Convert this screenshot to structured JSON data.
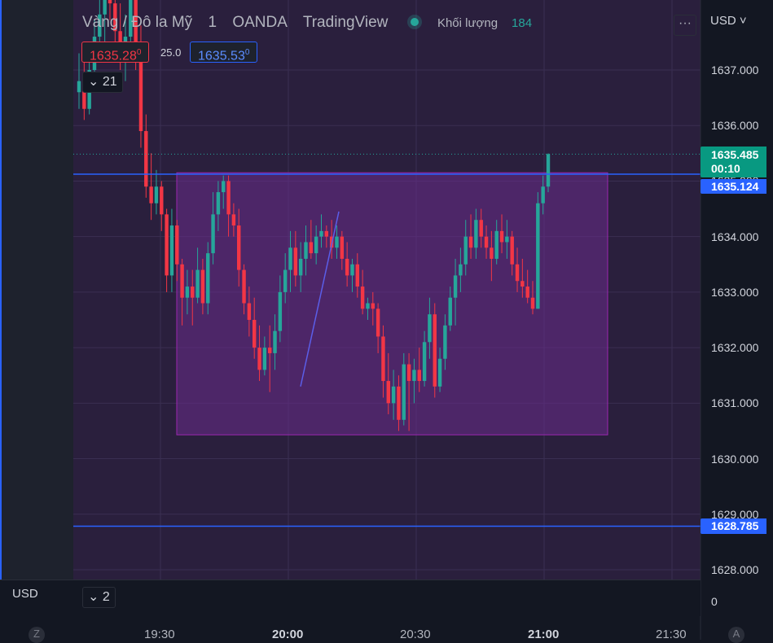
{
  "header": {
    "symbol_name": "Vàng / Đô la Mỹ",
    "interval": "1",
    "broker": "OANDA",
    "platform": "TradingView",
    "volume_label": "Khối lượng",
    "volume_value": "184",
    "currency_selector": "USD",
    "more_label": "···"
  },
  "quote": {
    "sell_price": "1635.28",
    "sell_sup": "0",
    "spread": "25.0",
    "buy_price": "1635.53",
    "buy_sup": "0"
  },
  "indicators_count": "21",
  "pane2": {
    "currency": "USD",
    "collapse_count": "2",
    "zero_label": "0"
  },
  "price_axis": {
    "labels": [
      "1637.000",
      "1636.000",
      "1635.000",
      "1634.000",
      "1633.000",
      "1632.000",
      "1631.000",
      "1630.000",
      "1629.000",
      "1628.000"
    ],
    "values": [
      1637,
      1636,
      1635,
      1634,
      1633,
      1632,
      1631,
      1630,
      1629,
      1628
    ]
  },
  "time_axis": {
    "labels": [
      {
        "text": "19:30",
        "bold": false
      },
      {
        "text": "20:00",
        "bold": true
      },
      {
        "text": "20:30",
        "bold": false
      },
      {
        "text": "21:00",
        "bold": true
      },
      {
        "text": "21:30",
        "bold": false
      }
    ],
    "corner_left": "Z",
    "corner_right": "A"
  },
  "tags": {
    "last_price": "1635.485",
    "countdown": "00:10",
    "upper_line": "1635.124",
    "lower_line": "1628.785"
  },
  "colors": {
    "up": "#26a69a",
    "down": "#f23645",
    "horizontal_line": "#2962ff",
    "rectangle_fill": "#6a2c8c",
    "rectangle_stroke": "#9c27b0",
    "trend_line": "#5b5ee8",
    "background": "#2a1f3d"
  },
  "chart_data": {
    "type": "candlestick",
    "symbol": "XAUUSD",
    "ylim": [
      1627.8,
      1638.8
    ],
    "time_ticks": [
      "19:30",
      "20:00",
      "20:30",
      "21:00",
      "21:30"
    ],
    "drawings": {
      "horizontal_lines": [
        1635.124,
        1628.785
      ],
      "rectangle": {
        "y_top": 1635.15,
        "y_bottom": 1630.43
      },
      "trend_line": {
        "y_start": 1631.3,
        "y_end": 1634.45
      }
    },
    "candles": [
      [
        1636.6,
        1637.3,
        1636.3,
        1636.8
      ],
      [
        1636.8,
        1637.2,
        1636.1,
        1636.3
      ],
      [
        1636.3,
        1637.4,
        1636.2,
        1637.0
      ],
      [
        1637.0,
        1637.9,
        1636.6,
        1637.6
      ],
      [
        1637.6,
        1638.4,
        1637.2,
        1638.0
      ],
      [
        1638.0,
        1638.8,
        1637.5,
        1638.4
      ],
      [
        1638.4,
        1638.8,
        1637.9,
        1638.2
      ],
      [
        1638.2,
        1638.8,
        1637.4,
        1637.7
      ],
      [
        1637.7,
        1638.2,
        1637.0,
        1637.3
      ],
      [
        1637.3,
        1638.0,
        1636.8,
        1637.6
      ],
      [
        1637.6,
        1638.8,
        1637.4,
        1638.4
      ],
      [
        1638.4,
        1638.8,
        1637.0,
        1637.3
      ],
      [
        1637.3,
        1637.8,
        1635.6,
        1635.9
      ],
      [
        1635.9,
        1636.2,
        1634.7,
        1634.9
      ],
      [
        1634.9,
        1635.5,
        1634.3,
        1634.6
      ],
      [
        1634.6,
        1635.2,
        1634.4,
        1634.9
      ],
      [
        1634.9,
        1635.0,
        1634.1,
        1634.4
      ],
      [
        1634.4,
        1634.5,
        1633.0,
        1633.3
      ],
      [
        1633.3,
        1634.5,
        1633.0,
        1634.2
      ],
      [
        1634.2,
        1634.3,
        1633.2,
        1633.5
      ],
      [
        1633.5,
        1633.6,
        1632.4,
        1632.9
      ],
      [
        1632.9,
        1633.4,
        1632.6,
        1633.1
      ],
      [
        1633.1,
        1633.4,
        1632.4,
        1632.9
      ],
      [
        1632.9,
        1633.8,
        1632.8,
        1633.4
      ],
      [
        1633.4,
        1633.6,
        1632.6,
        1632.8
      ],
      [
        1632.8,
        1633.9,
        1632.6,
        1633.7
      ],
      [
        1633.7,
        1634.8,
        1633.5,
        1634.4
      ],
      [
        1634.4,
        1635.0,
        1634.1,
        1634.8
      ],
      [
        1634.8,
        1635.1,
        1634.5,
        1635.0
      ],
      [
        1635.0,
        1635.1,
        1634.0,
        1634.4
      ],
      [
        1634.4,
        1634.6,
        1634.0,
        1634.2
      ],
      [
        1634.2,
        1634.5,
        1633.1,
        1633.4
      ],
      [
        1633.4,
        1633.5,
        1632.6,
        1632.8
      ],
      [
        1632.8,
        1633.1,
        1632.2,
        1632.5
      ],
      [
        1632.5,
        1632.9,
        1631.8,
        1632.0
      ],
      [
        1632.0,
        1632.4,
        1631.4,
        1631.6
      ],
      [
        1631.6,
        1632.2,
        1631.5,
        1632.0
      ],
      [
        1632.0,
        1632.4,
        1631.2,
        1631.9
      ],
      [
        1631.9,
        1632.6,
        1631.6,
        1632.3
      ],
      [
        1632.3,
        1633.3,
        1632.1,
        1633.0
      ],
      [
        1633.0,
        1633.7,
        1632.8,
        1633.4
      ],
      [
        1633.4,
        1634.1,
        1633.0,
        1633.8
      ],
      [
        1633.8,
        1634.1,
        1633.1,
        1633.3
      ],
      [
        1633.3,
        1633.9,
        1633.0,
        1633.6
      ],
      [
        1633.6,
        1634.2,
        1633.3,
        1633.9
      ],
      [
        1633.9,
        1634.3,
        1633.6,
        1633.7
      ],
      [
        1633.7,
        1634.2,
        1633.5,
        1634.0
      ],
      [
        1634.0,
        1634.4,
        1633.8,
        1634.1
      ],
      [
        1634.1,
        1634.2,
        1633.8,
        1634.0
      ],
      [
        1634.0,
        1634.3,
        1633.6,
        1633.8
      ],
      [
        1633.8,
        1634.2,
        1633.6,
        1634.0
      ],
      [
        1634.0,
        1634.1,
        1633.4,
        1633.6
      ],
      [
        1633.6,
        1633.9,
        1633.1,
        1633.3
      ],
      [
        1633.3,
        1633.6,
        1633.0,
        1633.5
      ],
      [
        1633.5,
        1633.7,
        1632.9,
        1633.1
      ],
      [
        1633.1,
        1633.4,
        1632.6,
        1632.7
      ],
      [
        1632.7,
        1632.9,
        1632.5,
        1632.8
      ],
      [
        1632.8,
        1633.0,
        1632.4,
        1632.7
      ],
      [
        1632.7,
        1632.8,
        1631.9,
        1632.2
      ],
      [
        1632.2,
        1632.4,
        1631.1,
        1631.4
      ],
      [
        1631.4,
        1631.9,
        1630.8,
        1631.0
      ],
      [
        1631.0,
        1631.6,
        1630.7,
        1631.3
      ],
      [
        1631.3,
        1631.5,
        1630.5,
        1630.7
      ],
      [
        1630.7,
        1631.9,
        1630.6,
        1631.7
      ],
      [
        1631.7,
        1631.9,
        1630.5,
        1631.4
      ],
      [
        1631.4,
        1631.8,
        1631.0,
        1631.6
      ],
      [
        1631.6,
        1632.0,
        1631.2,
        1631.4
      ],
      [
        1631.4,
        1632.3,
        1631.3,
        1632.1
      ],
      [
        1632.1,
        1632.9,
        1631.8,
        1632.6
      ],
      [
        1632.6,
        1632.8,
        1631.1,
        1631.3
      ],
      [
        1631.3,
        1632.0,
        1631.2,
        1631.8
      ],
      [
        1631.8,
        1632.6,
        1631.6,
        1632.4
      ],
      [
        1632.4,
        1633.1,
        1632.3,
        1632.9
      ],
      [
        1632.9,
        1633.6,
        1632.4,
        1633.3
      ],
      [
        1633.3,
        1633.8,
        1633.0,
        1633.5
      ],
      [
        1633.5,
        1634.3,
        1633.3,
        1634.0
      ],
      [
        1634.0,
        1634.4,
        1633.6,
        1633.8
      ],
      [
        1633.8,
        1634.5,
        1633.6,
        1634.3
      ],
      [
        1634.3,
        1634.5,
        1633.8,
        1634.0
      ],
      [
        1634.0,
        1634.2,
        1633.6,
        1633.8
      ],
      [
        1633.8,
        1634.1,
        1633.2,
        1633.6
      ],
      [
        1633.6,
        1634.3,
        1633.5,
        1634.1
      ],
      [
        1634.1,
        1634.4,
        1633.7,
        1633.9
      ],
      [
        1633.9,
        1634.3,
        1633.6,
        1634.0
      ],
      [
        1634.0,
        1634.1,
        1633.3,
        1633.5
      ],
      [
        1633.5,
        1633.8,
        1633.0,
        1633.2
      ],
      [
        1633.2,
        1633.6,
        1632.9,
        1633.1
      ],
      [
        1633.1,
        1633.4,
        1632.8,
        1632.9
      ],
      [
        1632.9,
        1633.2,
        1632.6,
        1632.7
      ],
      [
        1632.7,
        1634.8,
        1632.7,
        1634.6
      ],
      [
        1634.6,
        1635.1,
        1634.4,
        1634.9
      ],
      [
        1634.9,
        1635.5,
        1634.8,
        1635.485
      ]
    ]
  }
}
